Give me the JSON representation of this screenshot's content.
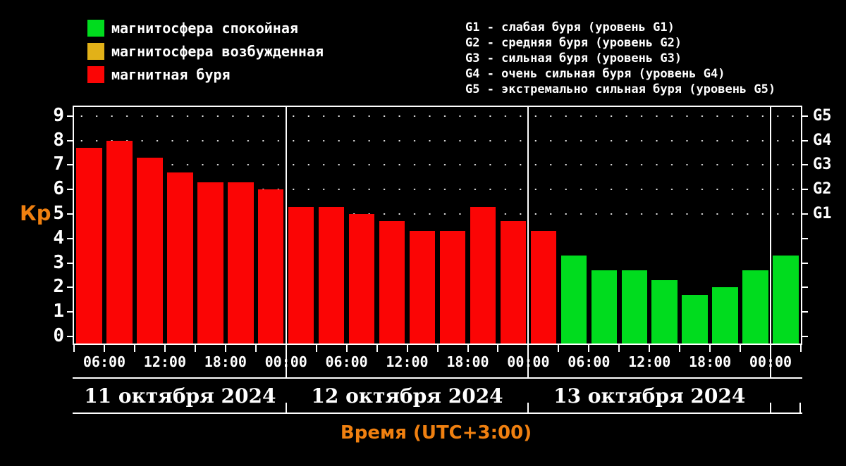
{
  "legend": {
    "items": [
      {
        "name": "quiet",
        "label": "магнитосфера спокойная",
        "color": "#00dc1e"
      },
      {
        "name": "disturbed",
        "label": "магнитосфера возбужденная",
        "color": "#e2b118"
      },
      {
        "name": "storm",
        "label": "магнитная буря",
        "color": "#fb0505"
      }
    ]
  },
  "storm_levels_info": {
    "lines": [
      "G1 - слабая буря (уровень G1)",
      "G2 - средняя буря (уровень G2)",
      "G3 - сильная буря (уровень G3)",
      "G4 - очень сильная буря (уровень G4)",
      "G5 - экстремально сильная буря (уровень G5)"
    ]
  },
  "chart_data": {
    "type": "bar",
    "title": "",
    "ylabel": "Кр",
    "xlabel": "Время (UTC+3:00)",
    "ylim": [
      0,
      9
    ],
    "yticks": [
      0,
      1,
      2,
      3,
      4,
      5,
      6,
      7,
      8,
      9
    ],
    "grid": "dotted horizontal rows at Kp 5,6,7,8,9 only",
    "legend_position": "top-left",
    "right_axis_labels": [
      {
        "label": "G1",
        "kp": 5
      },
      {
        "label": "G2",
        "kp": 6
      },
      {
        "label": "G3",
        "kp": 7
      },
      {
        "label": "G4",
        "kp": 8
      },
      {
        "label": "G5",
        "kp": 9
      }
    ],
    "bar_interval_hours": 3,
    "x_start_hour": 3,
    "x_time_tick_labels": [
      "06:00",
      "12:00",
      "18:00",
      "00:00",
      "06:00",
      "12:00",
      "18:00",
      "00:00",
      "06:00",
      "12:00",
      "18:00",
      "00:00"
    ],
    "days": [
      {
        "label": "11 октября 2024",
        "values": [
          7.7,
          8.0,
          7.3,
          6.7,
          6.3,
          6.3,
          6.0
        ],
        "states": [
          "storm",
          "storm",
          "storm",
          "storm",
          "storm",
          "storm",
          "storm"
        ]
      },
      {
        "label": "12 октября 2024",
        "values": [
          5.3,
          5.3,
          5.0,
          4.7,
          4.3,
          4.3,
          5.3,
          4.7
        ],
        "states": [
          "storm",
          "storm",
          "storm",
          "storm",
          "storm",
          "storm",
          "storm",
          "storm"
        ]
      },
      {
        "label": "13 октября 2024",
        "values": [
          4.3,
          3.3,
          2.7,
          2.7,
          2.3,
          1.7,
          2.0,
          2.7
        ],
        "states": [
          "storm",
          "quiet",
          "quiet",
          "quiet",
          "quiet",
          "quiet",
          "quiet",
          "quiet"
        ]
      },
      {
        "label": "",
        "values": [
          3.3
        ],
        "states": [
          "quiet"
        ]
      }
    ],
    "colors": {
      "storm": "#fb0505",
      "quiet": "#00dc1e",
      "disturbed": "#e2b118"
    }
  }
}
